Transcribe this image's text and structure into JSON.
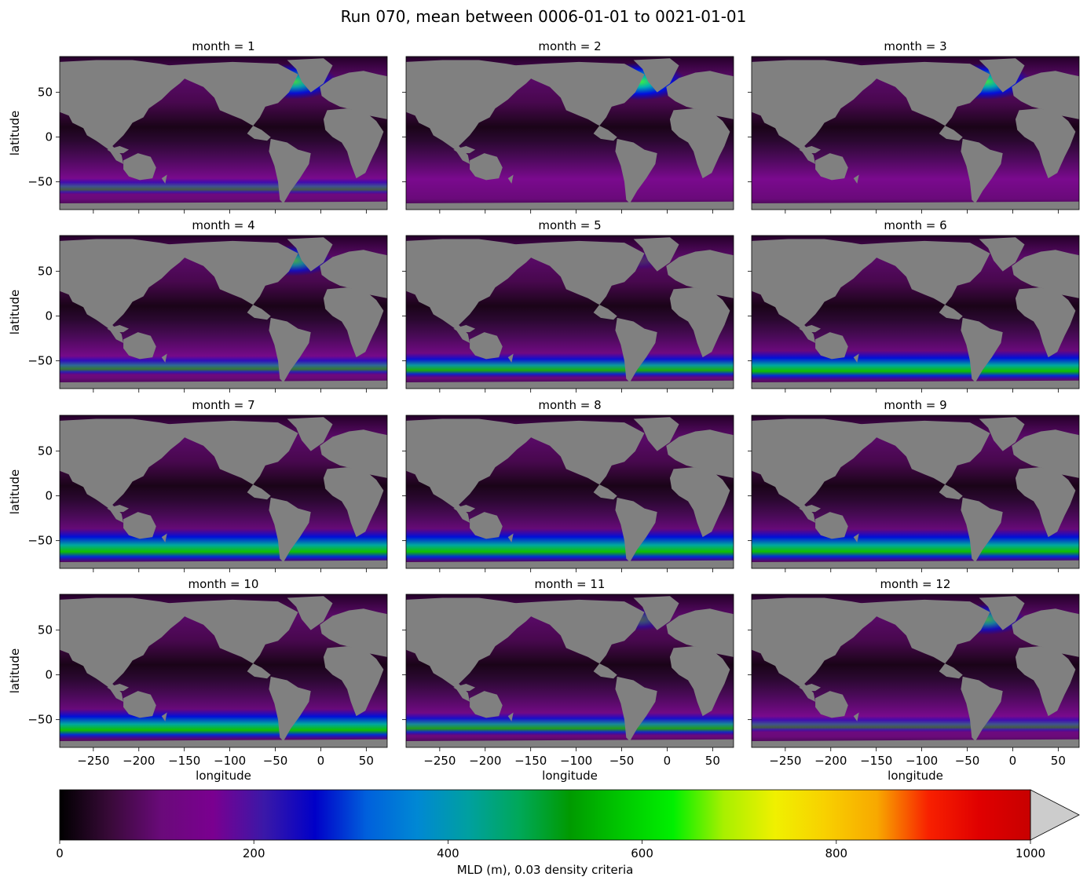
{
  "title": "Run 070, mean between 0006-01-01 to 0021-01-01",
  "colors": {
    "land": "#808080",
    "background": "#ffffff",
    "colormap": [
      "#000000",
      "#3a0a3a",
      "#6a0a7a",
      "#7a0090",
      "#3a18a8",
      "#0000c8",
      "#0060dc",
      "#0088d4",
      "#00a0a0",
      "#00a858",
      "#009a00",
      "#00c800",
      "#00f000",
      "#a8f000",
      "#f0f000",
      "#f8d000",
      "#f8a800",
      "#f82000",
      "#e00000",
      "#c80000",
      "#c0c0c0",
      "#cccccc"
    ]
  },
  "chart_data": {
    "type": "heatmap",
    "panels": [
      {
        "title": "month = 1",
        "month": 1,
        "deep_north": 0.9,
        "deep_south": 0.1,
        "north_west_pacific": 0.45
      },
      {
        "title": "month = 2",
        "month": 2,
        "deep_north": 1.0,
        "deep_south": 0.05,
        "north_west_pacific": 0.5
      },
      {
        "title": "month = 3",
        "month": 3,
        "deep_north": 0.95,
        "deep_south": 0.05,
        "north_west_pacific": 0.55
      },
      {
        "title": "month = 4",
        "month": 4,
        "deep_north": 0.7,
        "deep_south": 0.25,
        "north_west_pacific": 0.2
      },
      {
        "title": "month = 5",
        "month": 5,
        "deep_north": 0.15,
        "deep_south": 0.55,
        "north_west_pacific": 0.0
      },
      {
        "title": "month = 6",
        "month": 6,
        "deep_north": 0.0,
        "deep_south": 0.8,
        "north_west_pacific": 0.0
      },
      {
        "title": "month = 7",
        "month": 7,
        "deep_north": 0.0,
        "deep_south": 1.0,
        "north_west_pacific": 0.0
      },
      {
        "title": "month = 8",
        "month": 8,
        "deep_north": 0.0,
        "deep_south": 1.0,
        "north_west_pacific": 0.0
      },
      {
        "title": "month = 9",
        "month": 9,
        "deep_north": 0.0,
        "deep_south": 0.95,
        "north_west_pacific": 0.0
      },
      {
        "title": "month = 10",
        "month": 10,
        "deep_north": 0.0,
        "deep_south": 0.85,
        "north_west_pacific": 0.0
      },
      {
        "title": "month = 11",
        "month": 11,
        "deep_north": 0.35,
        "deep_south": 0.45,
        "north_west_pacific": 0.05
      },
      {
        "title": "month = 12",
        "month": 12,
        "deep_north": 0.7,
        "deep_south": 0.1,
        "north_west_pacific": 0.3
      }
    ],
    "x_ticks": [
      -250,
      -200,
      -150,
      -100,
      -50,
      0,
      50
    ],
    "x_tick_labels": [
      "−250",
      "−200",
      "−150",
      "−100",
      "−50",
      "0",
      "50"
    ],
    "y_ticks": [
      50,
      0,
      -50
    ],
    "y_tick_labels": [
      "50",
      "0",
      "−50"
    ],
    "xlim": [
      -287,
      73
    ],
    "ylim": [
      -81,
      90
    ],
    "xlabel": "longitude",
    "ylabel": "latitude",
    "colorbar": {
      "label": "MLD (m), 0.03 density criteria",
      "ticks": [
        0,
        200,
        400,
        600,
        800,
        1000
      ],
      "tick_labels": [
        "0",
        "200",
        "400",
        "600",
        "800",
        "1000"
      ],
      "range": [
        0,
        1000
      ],
      "extend": "max"
    }
  }
}
